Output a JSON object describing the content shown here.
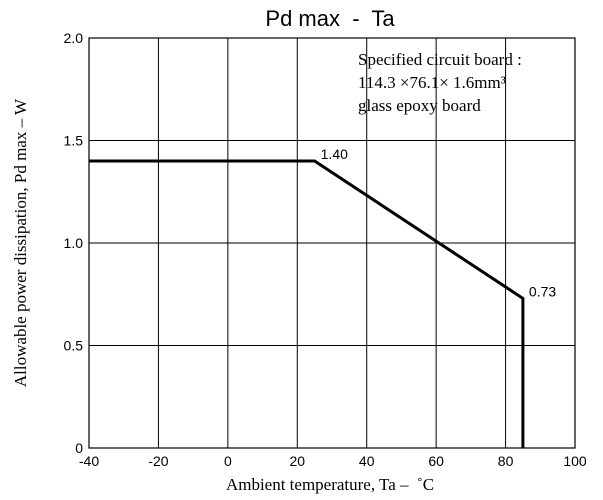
{
  "chart_data": {
    "type": "line",
    "title": "Pd max  -  Ta",
    "xlabel": "Ambient temperature, Ta –  ˚C",
    "ylabel": "Allowable power dissipation, Pd max – W",
    "xlim": [
      -40,
      100
    ],
    "ylim": [
      0,
      2.0
    ],
    "x_ticks": [
      -40,
      -20,
      0,
      20,
      40,
      60,
      80,
      100
    ],
    "x_tick_labels": [
      "-40",
      "-20",
      "0",
      "20",
      "40",
      "60",
      "80",
      "100"
    ],
    "y_ticks": [
      0,
      0.5,
      1.0,
      1.5,
      2.0
    ],
    "y_tick_labels": [
      "0",
      "0.5",
      "1.0",
      "1.5",
      "2.0"
    ],
    "grid": true,
    "series": [
      {
        "x": [
          -40,
          25,
          85,
          85
        ],
        "y": [
          1.4,
          1.4,
          0.73,
          0
        ]
      }
    ],
    "data_labels": [
      {
        "x": 25,
        "y": 1.4,
        "text": "1.40"
      },
      {
        "x": 85,
        "y": 0.73,
        "text": "0.73"
      }
    ],
    "annotation_lines": [
      "Specified circuit board :",
      "114.3 ×76.1× 1.6mm³",
      "glass epoxy board"
    ],
    "colors": {
      "line": "#000000",
      "grid": "#000000",
      "background": "#ffffff"
    }
  }
}
